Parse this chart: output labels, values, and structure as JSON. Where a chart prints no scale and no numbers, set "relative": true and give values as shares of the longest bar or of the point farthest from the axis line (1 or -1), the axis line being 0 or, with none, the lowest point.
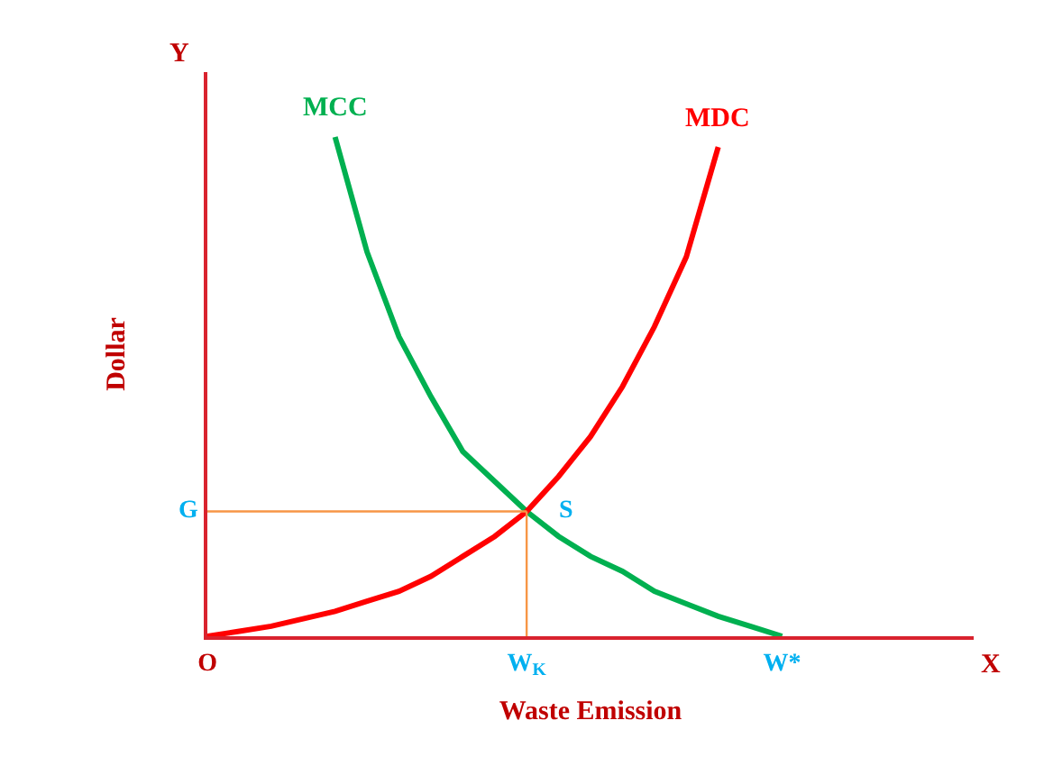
{
  "chart_data": {
    "type": "line",
    "relative": true,
    "xlabel": "Waste Emission",
    "ylabel": "Dollar",
    "categories": [
      "O",
      null,
      null,
      null,
      null,
      null,
      null,
      null,
      null,
      null,
      "W$_{K}$",
      null,
      null,
      null,
      null,
      null,
      null,
      null,
      "W*",
      null,
      null,
      null,
      null,
      null,
      null
    ],
    "series": [
      {
        "name": "MCC",
        "color": "#00b050",
        "values": [
          null,
          null,
          null,
          null,
          1.0,
          0.77,
          0.6,
          0.48,
          0.37,
          0.31,
          0.25,
          0.2,
          0.16,
          0.13,
          0.09,
          0.065,
          0.04,
          0.02,
          0,
          null,
          null,
          null,
          null,
          null,
          null
        ]
      },
      {
        "name": "MDC",
        "color": "#ff0000",
        "values": [
          0,
          0.01,
          0.02,
          0.035,
          0.05,
          0.07,
          0.09,
          0.12,
          0.16,
          0.2,
          0.25,
          0.32,
          0.4,
          0.5,
          0.62,
          0.76,
          0.98,
          null,
          null,
          null,
          null,
          null,
          null,
          null,
          null
        ]
      }
    ],
    "ref_lines": [
      {
        "axis": "y",
        "value": 0.25,
        "label": "G",
        "color": "#f79646"
      },
      {
        "axis": "x",
        "value": "W$_{K}$",
        "label": null,
        "color": "#f79646"
      }
    ],
    "annotations": [
      "Y",
      "X",
      {
        "text": "S",
        "x": "W$_{K}$",
        "y": 0.25
      }
    ],
    "grid": false,
    "legend": false,
    "marker": "none",
    "line_style": "solid"
  }
}
